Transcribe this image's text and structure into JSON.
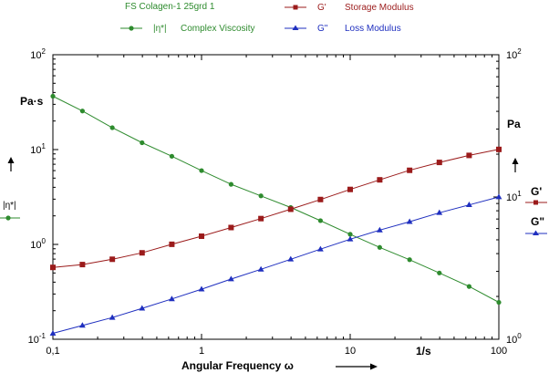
{
  "chart_data": {
    "type": "line",
    "title": "FS Colagen-1 25grd 1",
    "x_scale": "log",
    "y_scale": "log",
    "xlim": [
      0.1,
      100
    ],
    "ylim_left": [
      0.1,
      100
    ],
    "ylim_right": [
      1,
      100
    ],
    "grid": false,
    "xlabel": "Angular Frequency ω",
    "x_unit": "1/s",
    "ylabel_left": "|η*|",
    "unit_left": "Pa·s",
    "unit_right": "Pa",
    "x_tick_labels": [
      "0,1",
      "1",
      "10",
      "100"
    ],
    "left_tick_labels": [
      {
        "base": "10",
        "exp": "2"
      },
      {
        "base": "10",
        "exp": "1"
      },
      {
        "base": "10",
        "exp": "0"
      },
      {
        "base": "10",
        "exp": "-1"
      }
    ],
    "right_tick_labels": [
      {
        "base": "10",
        "exp": "2"
      },
      {
        "base": "10",
        "exp": "1"
      },
      {
        "base": "10",
        "exp": "0"
      }
    ],
    "right_labels": {
      "g_storage": "G'",
      "g_loss": "G\""
    },
    "series": [
      {
        "name": "Complex Viscosity",
        "symbol": "|η*|",
        "axis": "left",
        "color": "#2e8b2e",
        "marker": "circle",
        "x": [
          0.1,
          0.158,
          0.251,
          0.398,
          0.631,
          1,
          1.58,
          2.51,
          3.98,
          6.31,
          10,
          15.8,
          25.1,
          39.8,
          63.1,
          100
        ],
        "y": [
          36.5,
          25.5,
          17.0,
          11.8,
          8.5,
          6.0,
          4.3,
          3.25,
          2.45,
          1.78,
          1.28,
          0.93,
          0.69,
          0.5,
          0.36,
          0.245
        ]
      },
      {
        "name": "Storage Modulus",
        "symbol": "G'",
        "axis": "right",
        "color": "#9b1b1b",
        "marker": "square",
        "x": [
          0.1,
          0.158,
          0.251,
          0.398,
          0.631,
          1,
          1.58,
          2.51,
          3.98,
          6.31,
          10,
          15.8,
          25.1,
          39.8,
          63.1,
          100
        ],
        "y": [
          3.2,
          3.35,
          3.65,
          4.05,
          4.65,
          5.3,
          6.1,
          7.05,
          8.2,
          9.6,
          11.3,
          13.2,
          15.4,
          17.5,
          19.6,
          21.6
        ]
      },
      {
        "name": "Loss Modulus",
        "symbol": "G\"",
        "axis": "right",
        "color": "#1f2fbf",
        "marker": "triangle",
        "x": [
          0.1,
          0.158,
          0.251,
          0.398,
          0.631,
          1,
          1.58,
          2.51,
          3.98,
          6.31,
          10,
          15.8,
          25.1,
          39.8,
          63.1,
          100
        ],
        "y": [
          1.1,
          1.25,
          1.42,
          1.65,
          1.92,
          2.25,
          2.65,
          3.1,
          3.65,
          4.3,
          5.05,
          5.85,
          6.7,
          7.75,
          8.8,
          10.0
        ]
      }
    ]
  }
}
